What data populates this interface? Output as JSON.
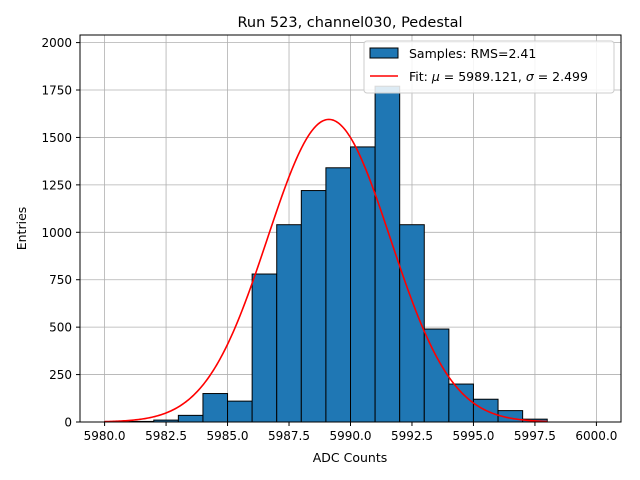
{
  "chart_data": {
    "type": "bar",
    "title": "Run 523, channel030, Pedestal",
    "xlabel": "ADC Counts",
    "ylabel": "Entries",
    "xlim": [
      5979.0,
      6001.0
    ],
    "ylim": [
      0,
      2040
    ],
    "grid": true,
    "x_ticks": [
      5980.0,
      5982.5,
      5985.0,
      5987.5,
      5990.0,
      5992.5,
      5995.0,
      5997.5,
      6000.0
    ],
    "x_tick_labels": [
      "5980.0",
      "5982.5",
      "5985.0",
      "5987.5",
      "5990.0",
      "5992.5",
      "5995.0",
      "5997.5",
      "6000.0"
    ],
    "y_ticks": [
      0,
      250,
      500,
      750,
      1000,
      1250,
      1500,
      1750,
      2000
    ],
    "y_tick_labels": [
      "0",
      "250",
      "500",
      "750",
      "1000",
      "1250",
      "1500",
      "1750",
      "2000"
    ],
    "histogram": {
      "name": "Samples",
      "color": "#1f77b4",
      "edge_color": "#000000",
      "bin_edges": [
        5980,
        5981,
        5982,
        5983,
        5984,
        5985,
        5986,
        5987,
        5988,
        5989,
        5990,
        5991,
        5992,
        5993,
        5994,
        5995,
        5996,
        5997,
        5998
      ],
      "counts": [
        2,
        3,
        10,
        35,
        150,
        110,
        780,
        1040,
        1220,
        1340,
        1450,
        1770,
        1040,
        490,
        200,
        120,
        60,
        15
      ]
    },
    "fit": {
      "name": "Fit",
      "type": "gaussian",
      "color": "#ff0000",
      "mu": 5989.121,
      "sigma": 2.499,
      "amplitude": 1595,
      "x_range": [
        5980,
        5998
      ]
    },
    "legend": {
      "location": "top-right",
      "entries": [
        {
          "label": "Samples: RMS=2.41",
          "kind": "patch"
        },
        {
          "label_prefix": "Fit: ",
          "mu_symbol": "μ",
          "mu_text": " = 5989.121, ",
          "sigma_symbol": "σ",
          "sigma_text": " = 2.499",
          "kind": "line"
        }
      ]
    }
  }
}
